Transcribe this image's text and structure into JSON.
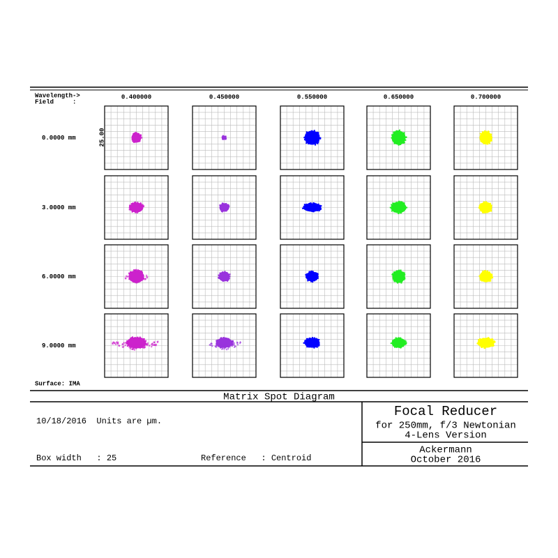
{
  "header": {
    "wavelength_label": "Wavelength->",
    "field_label": "Field     :"
  },
  "wavelengths": [
    "0.400000",
    "0.450000",
    "0.550000",
    "0.650000",
    "0.700000"
  ],
  "colors": [
    "#cc22cc",
    "#9933dd",
    "#0000ff",
    "#22ee22",
    "#ffff00"
  ],
  "fields": [
    "0.0000 mm",
    "3.0000 mm",
    "6.0000 mm",
    "9.0000 mm"
  ],
  "scale_label": "25.00",
  "surface": "Surface: IMA",
  "title_block": {
    "title": "Matrix Spot Diagram",
    "date_units": "10/18/2016  Units are µm.",
    "box_width": "Box width   : 25",
    "reference": "Reference   : Centroid",
    "project": [
      "Focal Reducer",
      "for 250mm, f/3 Newtonian",
      "4-Lens Version"
    ],
    "author": [
      "Ackermann",
      "October 2016"
    ]
  }
}
